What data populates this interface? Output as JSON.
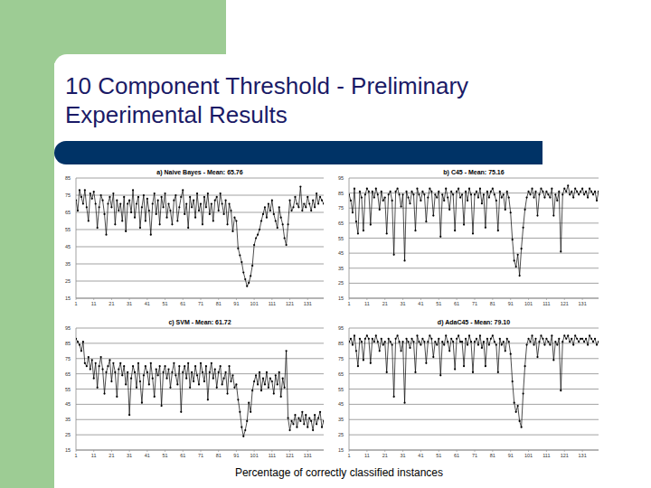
{
  "slide": {
    "title": [
      "10 Component Threshold - Preliminary",
      "Experimental Results"
    ],
    "caption": "Percentage of correctly classified instances"
  },
  "chart_data": [
    {
      "type": "line",
      "title": "a) Naive Bayes - Mean: 65.76",
      "color": "#000000",
      "marker": "circle",
      "grid": true,
      "xlim": [
        1,
        140
      ],
      "xticks": [
        1,
        11,
        21,
        31,
        41,
        51,
        61,
        71,
        81,
        91,
        101,
        111,
        121,
        131
      ],
      "ylim": [
        15,
        85
      ],
      "yticks": [
        15,
        25,
        35,
        45,
        55,
        65,
        75,
        85
      ],
      "x": [
        1,
        2,
        3,
        4,
        5,
        6,
        7,
        8,
        9,
        10,
        11,
        12,
        13,
        14,
        15,
        16,
        17,
        18,
        19,
        20,
        21,
        22,
        23,
        24,
        25,
        26,
        27,
        28,
        29,
        30,
        31,
        32,
        33,
        34,
        35,
        36,
        37,
        38,
        39,
        40,
        41,
        42,
        43,
        44,
        45,
        46,
        47,
        48,
        49,
        50,
        51,
        52,
        53,
        54,
        55,
        56,
        57,
        58,
        59,
        60,
        61,
        62,
        63,
        64,
        65,
        66,
        67,
        68,
        69,
        70,
        71,
        72,
        73,
        74,
        75,
        76,
        77,
        78,
        79,
        80,
        81,
        82,
        83,
        84,
        85,
        86,
        87,
        88,
        89,
        90,
        91,
        92,
        93,
        94,
        95,
        96,
        97,
        98,
        99,
        100,
        101,
        102,
        103,
        104,
        105,
        106,
        107,
        108,
        109,
        110,
        111,
        112,
        113,
        114,
        115,
        116,
        117,
        118,
        119,
        120,
        121,
        122,
        123,
        124,
        125,
        126,
        127,
        128,
        129,
        130,
        131,
        132,
        133,
        134,
        135,
        136,
        137,
        138,
        139,
        140
      ],
      "values": [
        72,
        66,
        78,
        74,
        70,
        78,
        68,
        60,
        76,
        73,
        77,
        70,
        56,
        68,
        75,
        72,
        64,
        52,
        70,
        74,
        68,
        76,
        58,
        72,
        66,
        70,
        60,
        74,
        54,
        70,
        72,
        65,
        78,
        62,
        70,
        74,
        56,
        68,
        75,
        60,
        73,
        66,
        52,
        70,
        76,
        64,
        72,
        58,
        74,
        68,
        76,
        62,
        70,
        66,
        58,
        72,
        75,
        60,
        68,
        74,
        78,
        64,
        70,
        56,
        74,
        68,
        72,
        62,
        76,
        66,
        70,
        58,
        74,
        68,
        76,
        64,
        70,
        60,
        72,
        74,
        66,
        76,
        70,
        64,
        72,
        58,
        70,
        66,
        54,
        62,
        60,
        44,
        40,
        36,
        30,
        26,
        22,
        24,
        28,
        34,
        46,
        50,
        52,
        55,
        60,
        64,
        68,
        62,
        70,
        66,
        72,
        64,
        60,
        56,
        68,
        62,
        58,
        50,
        46,
        58,
        72,
        66,
        68,
        74,
        70,
        68,
        80,
        66,
        70,
        68,
        74,
        70,
        66,
        72,
        68,
        76,
        70,
        74,
        72,
        70
      ]
    },
    {
      "type": "line",
      "title": "b) C45 - Mean: 75.16",
      "color": "#000000",
      "marker": "circle",
      "grid": true,
      "xlim": [
        1,
        140
      ],
      "xticks": [
        1,
        11,
        21,
        31,
        41,
        51,
        61,
        71,
        81,
        91,
        101,
        111,
        121,
        131
      ],
      "ylim": [
        15,
        95
      ],
      "yticks": [
        15,
        25,
        35,
        45,
        55,
        65,
        75,
        85,
        95
      ],
      "x": [
        1,
        2,
        3,
        4,
        5,
        6,
        7,
        8,
        9,
        10,
        11,
        12,
        13,
        14,
        15,
        16,
        17,
        18,
        19,
        20,
        21,
        22,
        23,
        24,
        25,
        26,
        27,
        28,
        29,
        30,
        31,
        32,
        33,
        34,
        35,
        36,
        37,
        38,
        39,
        40,
        41,
        42,
        43,
        44,
        45,
        46,
        47,
        48,
        49,
        50,
        51,
        52,
        53,
        54,
        55,
        56,
        57,
        58,
        59,
        60,
        61,
        62,
        63,
        64,
        65,
        66,
        67,
        68,
        69,
        70,
        71,
        72,
        73,
        74,
        75,
        76,
        77,
        78,
        79,
        80,
        81,
        82,
        83,
        84,
        85,
        86,
        87,
        88,
        89,
        90,
        91,
        92,
        93,
        94,
        95,
        96,
        97,
        98,
        99,
        100,
        101,
        102,
        103,
        104,
        105,
        106,
        107,
        108,
        109,
        110,
        111,
        112,
        113,
        114,
        115,
        116,
        117,
        118,
        119,
        120,
        121,
        122,
        123,
        124,
        125,
        126,
        127,
        128,
        129,
        130,
        131,
        132,
        133,
        134,
        135,
        136,
        137,
        138,
        139,
        140
      ],
      "values": [
        84,
        80,
        72,
        88,
        66,
        58,
        86,
        82,
        60,
        84,
        88,
        86,
        64,
        86,
        82,
        88,
        84,
        74,
        86,
        80,
        82,
        58,
        84,
        86,
        80,
        44,
        86,
        88,
        84,
        76,
        84,
        40,
        86,
        82,
        78,
        86,
        84,
        60,
        88,
        84,
        80,
        86,
        84,
        66,
        82,
        88,
        86,
        70,
        84,
        82,
        86,
        56,
        84,
        80,
        88,
        82,
        74,
        86,
        84,
        60,
        86,
        88,
        82,
        84,
        64,
        86,
        80,
        88,
        84,
        58,
        84,
        86,
        82,
        88,
        78,
        84,
        62,
        86,
        82,
        86,
        88,
        84,
        80,
        60,
        86,
        82,
        84,
        74,
        86,
        82,
        72,
        54,
        40,
        36,
        44,
        30,
        48,
        62,
        74,
        82,
        86,
        84,
        88,
        82,
        86,
        70,
        84,
        88,
        86,
        82,
        86,
        84,
        82,
        88,
        70,
        84,
        80,
        86,
        46,
        84,
        88,
        86,
        90,
        84,
        86,
        82,
        88,
        86,
        84,
        86,
        88,
        84,
        86,
        82,
        88,
        86,
        84,
        86,
        80,
        86
      ]
    },
    {
      "type": "line",
      "title": "c) SVM - Mean: 61.72",
      "color": "#000000",
      "marker": "circle",
      "grid": true,
      "xlim": [
        1,
        140
      ],
      "xticks": [
        1,
        11,
        21,
        31,
        41,
        51,
        61,
        71,
        81,
        91,
        101,
        111,
        121,
        131
      ],
      "ylim": [
        15,
        95
      ],
      "yticks": [
        15,
        25,
        35,
        45,
        55,
        65,
        75,
        85,
        95
      ],
      "x": [
        1,
        2,
        3,
        4,
        5,
        6,
        7,
        8,
        9,
        10,
        11,
        12,
        13,
        14,
        15,
        16,
        17,
        18,
        19,
        20,
        21,
        22,
        23,
        24,
        25,
        26,
        27,
        28,
        29,
        30,
        31,
        32,
        33,
        34,
        35,
        36,
        37,
        38,
        39,
        40,
        41,
        42,
        43,
        44,
        45,
        46,
        47,
        48,
        49,
        50,
        51,
        52,
        53,
        54,
        55,
        56,
        57,
        58,
        59,
        60,
        61,
        62,
        63,
        64,
        65,
        66,
        67,
        68,
        69,
        70,
        71,
        72,
        73,
        74,
        75,
        76,
        77,
        78,
        79,
        80,
        81,
        82,
        83,
        84,
        85,
        86,
        87,
        88,
        89,
        90,
        91,
        92,
        93,
        94,
        95,
        96,
        97,
        98,
        99,
        100,
        101,
        102,
        103,
        104,
        105,
        106,
        107,
        108,
        109,
        110,
        111,
        112,
        113,
        114,
        115,
        116,
        117,
        118,
        119,
        120,
        121,
        122,
        123,
        124,
        125,
        126,
        127,
        128,
        129,
        130,
        131,
        132,
        133,
        134,
        135,
        136,
        137,
        138,
        139,
        140
      ],
      "values": [
        88,
        86,
        84,
        80,
        86,
        72,
        70,
        76,
        68,
        74,
        62,
        72,
        56,
        70,
        76,
        68,
        52,
        66,
        70,
        74,
        60,
        72,
        66,
        50,
        68,
        72,
        64,
        70,
        58,
        66,
        38,
        62,
        70,
        66,
        56,
        72,
        60,
        46,
        64,
        70,
        66,
        58,
        72,
        62,
        50,
        68,
        64,
        70,
        44,
        66,
        70,
        62,
        68,
        56,
        66,
        72,
        64,
        58,
        70,
        40,
        66,
        70,
        62,
        72,
        56,
        66,
        60,
        70,
        64,
        58,
        72,
        66,
        60,
        70,
        48,
        66,
        72,
        62,
        68,
        56,
        66,
        70,
        58,
        62,
        66,
        52,
        70,
        60,
        64,
        56,
        58,
        48,
        40,
        30,
        24,
        28,
        34,
        46,
        40,
        54,
        60,
        64,
        58,
        66,
        54,
        62,
        58,
        66,
        56,
        62,
        60,
        52,
        64,
        58,
        66,
        50,
        62,
        56,
        80,
        36,
        28,
        34,
        32,
        38,
        30,
        36,
        34,
        40,
        32,
        38,
        30,
        36,
        34,
        28,
        38,
        32,
        36,
        40,
        30,
        34
      ]
    },
    {
      "type": "line",
      "title": "d) AdaC45 - Mean: 79.10",
      "color": "#000000",
      "marker": "circle",
      "grid": true,
      "xlim": [
        1,
        140
      ],
      "xticks": [
        1,
        11,
        21,
        31,
        41,
        51,
        61,
        71,
        81,
        91,
        101,
        111,
        121,
        131
      ],
      "ylim": [
        15,
        95
      ],
      "yticks": [
        15,
        25,
        35,
        45,
        55,
        65,
        75,
        85,
        95
      ],
      "x": [
        1,
        2,
        3,
        4,
        5,
        6,
        7,
        8,
        9,
        10,
        11,
        12,
        13,
        14,
        15,
        16,
        17,
        18,
        19,
        20,
        21,
        22,
        23,
        24,
        25,
        26,
        27,
        28,
        29,
        30,
        31,
        32,
        33,
        34,
        35,
        36,
        37,
        38,
        39,
        40,
        41,
        42,
        43,
        44,
        45,
        46,
        47,
        48,
        49,
        50,
        51,
        52,
        53,
        54,
        55,
        56,
        57,
        58,
        59,
        60,
        61,
        62,
        63,
        64,
        65,
        66,
        67,
        68,
        69,
        70,
        71,
        72,
        73,
        74,
        75,
        76,
        77,
        78,
        79,
        80,
        81,
        82,
        83,
        84,
        85,
        86,
        87,
        88,
        89,
        90,
        91,
        92,
        93,
        94,
        95,
        96,
        97,
        98,
        99,
        100,
        101,
        102,
        103,
        104,
        105,
        106,
        107,
        108,
        109,
        110,
        111,
        112,
        113,
        114,
        115,
        116,
        117,
        118,
        119,
        120,
        121,
        122,
        123,
        124,
        125,
        126,
        127,
        128,
        129,
        130,
        131,
        132,
        133,
        134,
        135,
        136,
        137,
        138,
        139,
        140
      ],
      "values": [
        86,
        88,
        84,
        90,
        80,
        70,
        88,
        86,
        74,
        88,
        90,
        88,
        72,
        88,
        86,
        90,
        86,
        80,
        88,
        84,
        86,
        66,
        88,
        86,
        84,
        50,
        88,
        90,
        86,
        80,
        86,
        46,
        88,
        86,
        82,
        88,
        86,
        66,
        90,
        86,
        84,
        88,
        86,
        72,
        86,
        90,
        88,
        76,
        86,
        84,
        88,
        64,
        86,
        84,
        90,
        86,
        80,
        88,
        86,
        68,
        88,
        90,
        86,
        86,
        70,
        88,
        84,
        90,
        86,
        66,
        86,
        88,
        84,
        90,
        82,
        86,
        70,
        88,
        84,
        88,
        90,
        86,
        84,
        66,
        88,
        84,
        86,
        80,
        88,
        86,
        78,
        60,
        46,
        40,
        44,
        34,
        30,
        52,
        70,
        84,
        88,
        86,
        90,
        84,
        88,
        76,
        86,
        90,
        88,
        84,
        88,
        86,
        84,
        90,
        74,
        86,
        84,
        88,
        54,
        86,
        90,
        88,
        90,
        86,
        88,
        84,
        90,
        88,
        86,
        88,
        88,
        86,
        88,
        84,
        90,
        88,
        86,
        88,
        84,
        86
      ]
    }
  ]
}
